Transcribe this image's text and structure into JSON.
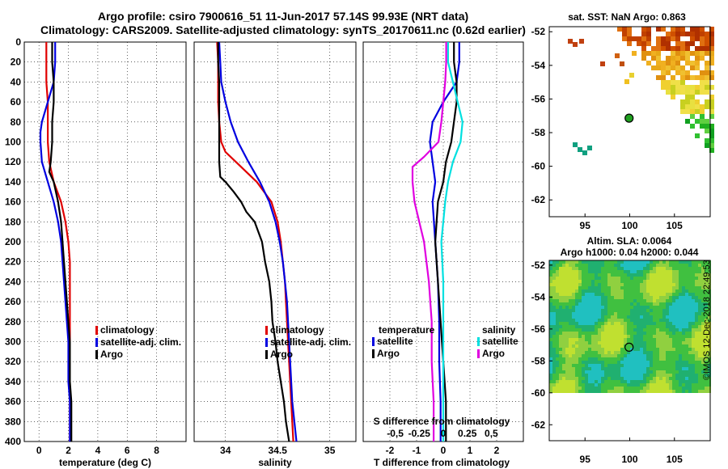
{
  "title_line1": "Argo profile: csiro 7900616_51 11-Jun-2017 57.14S 99.93E (NRT data)",
  "title_line2": "Climatology: CARS2009. Satellite-adjusted climatology: synTS_20170611.nc (0.62d earlier)",
  "watermark": "©IMOS 12-Dec-2018 22:49:53",
  "colors": {
    "climatology": "#e00000",
    "satellite": "#0000e0",
    "argo": "#000000",
    "sat_sal": "#00e0e0",
    "sal_diff": "#e000e0"
  },
  "chart_data": [
    {
      "type": "line",
      "name": "temperature",
      "xlabel": "temperature (deg C)",
      "ylim": [
        400,
        0
      ],
      "xlim": [
        -1,
        10
      ],
      "xticks": [
        0,
        2,
        4,
        6,
        8
      ],
      "yticks": [
        0,
        20,
        40,
        60,
        80,
        100,
        120,
        140,
        160,
        180,
        200,
        220,
        240,
        260,
        280,
        300,
        320,
        340,
        360,
        380,
        400
      ],
      "legend": [
        "climatology",
        "satellite-adj. clim.",
        "Argo"
      ],
      "series": [
        {
          "name": "climatology",
          "color": "#e00000",
          "depth": [
            0,
            20,
            40,
            60,
            80,
            100,
            120,
            140,
            160,
            180,
            200,
            220,
            240,
            260,
            280,
            300,
            320,
            340,
            360,
            380,
            400
          ],
          "values": [
            0.5,
            0.5,
            0.5,
            0.6,
            0.6,
            0.6,
            0.7,
            1.0,
            1.5,
            1.8,
            2.0,
            2.1,
            2.1,
            2.1,
            2.1,
            2.1,
            2.1,
            2.1,
            2.1,
            2.1,
            2.1
          ]
        },
        {
          "name": "satellite-adj. clim.",
          "color": "#0000e0",
          "depth": [
            0,
            20,
            40,
            60,
            80,
            90,
            100,
            120,
            140,
            160,
            180,
            200,
            220,
            240,
            260,
            280,
            300,
            320,
            340,
            360,
            380,
            400
          ],
          "values": [
            1.1,
            1.1,
            1.0,
            0.6,
            0.2,
            0.1,
            0.1,
            0.2,
            0.6,
            1.0,
            1.3,
            1.5,
            1.6,
            1.7,
            1.8,
            1.9,
            2.0,
            2.0,
            2.0,
            2.1,
            2.1,
            2.1
          ]
        },
        {
          "name": "Argo",
          "color": "#000000",
          "depth": [
            0,
            20,
            40,
            60,
            80,
            100,
            120,
            130,
            140,
            160,
            180,
            200,
            220,
            240,
            260,
            280,
            300,
            320,
            340,
            360,
            380,
            400
          ],
          "values": [
            0.9,
            0.9,
            1.0,
            1.0,
            0.9,
            0.9,
            0.8,
            0.7,
            1.0,
            1.3,
            1.5,
            1.6,
            1.7,
            1.8,
            1.9,
            2.0,
            2.1,
            2.1,
            2.1,
            2.2,
            2.2,
            2.2
          ]
        }
      ]
    },
    {
      "type": "line",
      "name": "salinity",
      "xlabel": "salinity",
      "ylim": [
        400,
        0
      ],
      "xlim": [
        33.7,
        35.25
      ],
      "xticks": [
        34,
        34.5,
        35
      ],
      "legend": [
        "climatology",
        "satellite-adj. clim.",
        "Argo"
      ],
      "series": [
        {
          "name": "climatology",
          "color": "#e00000",
          "depth": [
            0,
            20,
            40,
            60,
            80,
            100,
            110,
            120,
            130,
            140,
            160,
            180,
            200,
            220,
            240,
            260,
            280,
            300,
            320,
            340,
            360,
            380,
            400
          ],
          "values": [
            33.92,
            33.93,
            33.93,
            33.93,
            33.94,
            33.96,
            34.0,
            34.1,
            34.2,
            34.3,
            34.44,
            34.5,
            34.53,
            34.55,
            34.57,
            34.58,
            34.59,
            34.6,
            34.61,
            34.62,
            34.63,
            34.64,
            34.65
          ]
        },
        {
          "name": "satellite-adj. clim.",
          "color": "#0000e0",
          "depth": [
            0,
            20,
            40,
            60,
            80,
            100,
            120,
            140,
            160,
            180,
            200,
            220,
            240,
            260,
            280,
            300,
            320,
            340,
            360,
            380,
            400
          ],
          "values": [
            33.94,
            33.95,
            33.96,
            34.0,
            34.05,
            34.12,
            34.22,
            34.33,
            34.42,
            34.48,
            34.52,
            34.55,
            34.57,
            34.59,
            34.6,
            34.61,
            34.62,
            34.63,
            34.64,
            34.66,
            34.68
          ]
        },
        {
          "name": "Argo",
          "color": "#000000",
          "depth": [
            0,
            20,
            40,
            60,
            80,
            100,
            120,
            135,
            140,
            150,
            160,
            170,
            180,
            200,
            220,
            240,
            260,
            280,
            300,
            320,
            340,
            360,
            380,
            400
          ],
          "values": [
            33.93,
            33.93,
            33.94,
            33.94,
            33.94,
            33.94,
            33.94,
            33.95,
            34.0,
            34.08,
            34.15,
            34.2,
            34.28,
            34.35,
            34.38,
            34.42,
            34.44,
            34.45,
            34.48,
            34.5,
            34.53,
            34.56,
            34.58,
            34.61
          ]
        }
      ]
    },
    {
      "type": "line",
      "name": "difference",
      "xlabel": "T difference from climatology",
      "x2label": "S difference from climatology",
      "ylim": [
        400,
        0
      ],
      "xlim": [
        -3,
        3
      ],
      "xticks": [
        -2,
        -1,
        0,
        1,
        2
      ],
      "x2ticks": [
        {
          "value": -0.5,
          "label": "-0,5"
        },
        {
          "value": -0.25,
          "label": "-0.25"
        },
        {
          "value": 0,
          "label": "0"
        },
        {
          "value": 0.25,
          "label": "0.25"
        },
        {
          "value": 0.5,
          "label": "0,5"
        }
      ],
      "legend_t": {
        "title": "temperature",
        "items": [
          "satellite",
          "Argo"
        ]
      },
      "legend_s": {
        "title": "salinity",
        "items": [
          "satellite",
          "Argo"
        ]
      },
      "series": [
        {
          "name": "T satellite",
          "color": "#0000e0",
          "depth": [
            0,
            20,
            40,
            60,
            80,
            100,
            120,
            140,
            160,
            200,
            240,
            280,
            320,
            360,
            400
          ],
          "values": [
            0.6,
            0.6,
            0.5,
            0.0,
            -0.4,
            -0.5,
            -0.4,
            -0.3,
            -0.4,
            -0.3,
            -0.2,
            -0.15,
            -0.15,
            -0.1,
            -0.1
          ]
        },
        {
          "name": "T Argo",
          "color": "#000000",
          "depth": [
            0,
            20,
            40,
            60,
            80,
            100,
            120,
            140,
            160,
            200,
            240,
            280,
            320,
            360,
            400
          ],
          "values": [
            0.4,
            0.4,
            0.5,
            0.5,
            0.4,
            0.3,
            0.1,
            0.0,
            -0.2,
            -0.3,
            -0.2,
            -0.1,
            0.0,
            0.1,
            0.1
          ]
        },
        {
          "name": "S satellite",
          "color": "#00e0e0",
          "depth": [
            0,
            20,
            40,
            60,
            80,
            100,
            120,
            140,
            160,
            180,
            200,
            240,
            280,
            320,
            360,
            400
          ],
          "values": [
            0.05,
            0.05,
            0.1,
            0.15,
            0.2,
            0.18,
            0.1,
            0.05,
            0.02,
            0.0,
            -0.02,
            0.0,
            0.0,
            0.0,
            0.0,
            0.0
          ]
        },
        {
          "name": "S Argo",
          "color": "#e000e0",
          "depth": [
            0,
            20,
            40,
            60,
            80,
            100,
            115,
            125,
            140,
            160,
            180,
            200,
            240,
            280,
            320,
            360,
            400
          ],
          "values": [
            0.03,
            0.03,
            0.02,
            0.0,
            -0.02,
            -0.05,
            -0.2,
            -0.32,
            -0.32,
            -0.3,
            -0.25,
            -0.2,
            -0.15,
            -0.12,
            -0.12,
            -0.1,
            -0.1
          ]
        }
      ]
    },
    {
      "type": "heatmap",
      "name": "sst_map",
      "title": "sat. SST: NaN Argo: 0.863",
      "xticks": [
        95,
        100,
        105
      ],
      "yticks": [
        -52,
        -54,
        -56,
        -58,
        -60,
        -62
      ],
      "xlim": [
        91,
        109
      ],
      "ylim": [
        -63,
        -51.7
      ],
      "argo_position": [
        99.93,
        -57.14
      ]
    },
    {
      "type": "heatmap",
      "name": "sla_map",
      "title": "Altim. SLA: 0.0064",
      "subtitle": "Argo h1000: 0.04 h2000: 0.044",
      "xticks": [
        95,
        100,
        105
      ],
      "yticks": [
        -52,
        -54,
        -56,
        -58,
        -60,
        -62
      ],
      "xlim": [
        91,
        109
      ],
      "ylim": [
        -63,
        -51.7
      ],
      "argo_position": [
        99.93,
        -57.14
      ]
    }
  ]
}
